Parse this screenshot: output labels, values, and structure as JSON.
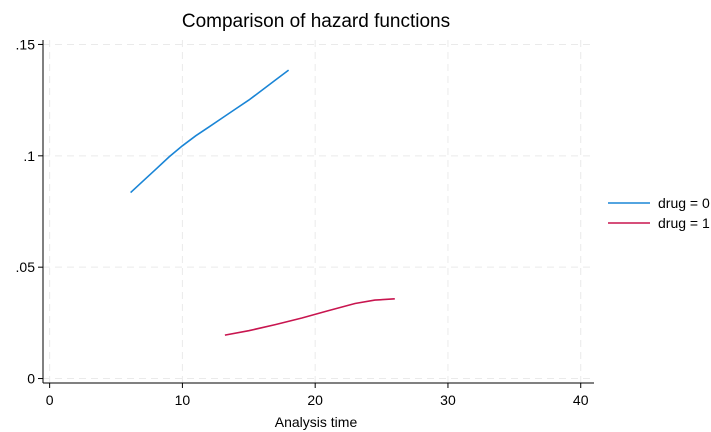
{
  "chart_data": {
    "type": "line",
    "title": "Comparison of hazard functions",
    "xlabel": "Analysis time",
    "ylabel": "",
    "xlim": [
      -0.5,
      41
    ],
    "ylim": [
      -0.002,
      0.152
    ],
    "x_ticks": [
      0,
      10,
      20,
      30,
      40
    ],
    "x_tick_labels": [
      "0",
      "10",
      "20",
      "30",
      "40"
    ],
    "y_ticks": [
      0,
      0.05,
      0.1,
      0.15
    ],
    "y_tick_labels": [
      "0",
      ".05",
      ".1",
      ".15"
    ],
    "grid": true,
    "legend_position": "right",
    "series": [
      {
        "name": "drug = 0",
        "color": "#1a85d6",
        "x": [
          6.1,
          7,
          8,
          9,
          10,
          11,
          12,
          13,
          14,
          15,
          16,
          17,
          18
        ],
        "y": [
          0.0835,
          0.0885,
          0.094,
          0.0995,
          0.1045,
          0.109,
          0.113,
          0.117,
          0.121,
          0.125,
          0.1295,
          0.134,
          0.1385
        ]
      },
      {
        "name": "drug = 1",
        "color": "#c8154f",
        "x": [
          13.2,
          15,
          17,
          19,
          21,
          23,
          24.5,
          26
        ],
        "y": [
          0.0195,
          0.0215,
          0.0242,
          0.0272,
          0.0305,
          0.0337,
          0.0352,
          0.0358
        ]
      }
    ]
  }
}
